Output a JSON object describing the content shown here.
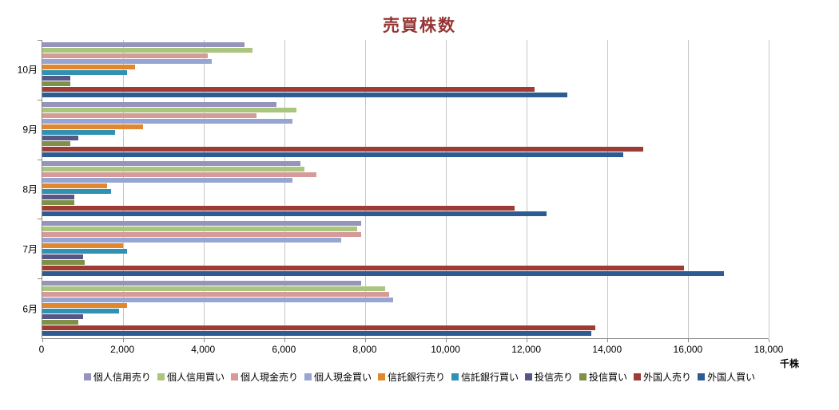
{
  "chart_data": {
    "type": "bar",
    "orientation": "horizontal",
    "title": "売買株数",
    "unit_label": "千株",
    "xlim": [
      0,
      18000
    ],
    "grid": true,
    "legend_position": "bottom",
    "xticks": [
      0,
      2000,
      4000,
      6000,
      8000,
      10000,
      12000,
      14000,
      16000,
      18000
    ],
    "x_tick_labels": [
      "0",
      "2,000",
      "4,000",
      "6,000",
      "8,000",
      "10,000",
      "12,000",
      "14,000",
      "16,000",
      "18,000"
    ],
    "categories": [
      "10月",
      "9月",
      "8月",
      "7月",
      "6月"
    ],
    "series": [
      {
        "name": "個人信用売り",
        "color": "#9595bc",
        "values": [
          5000,
          5800,
          6400,
          7900,
          7900
        ]
      },
      {
        "name": "個人信用買い",
        "color": "#aac57e",
        "values": [
          5200,
          6300,
          6500,
          7800,
          8500
        ]
      },
      {
        "name": "個人現金売り",
        "color": "#d69a98",
        "values": [
          4100,
          5300,
          6800,
          7900,
          8600
        ]
      },
      {
        "name": "個人現金買い",
        "color": "#97a5d2",
        "values": [
          4200,
          6200,
          6200,
          7400,
          8700
        ]
      },
      {
        "name": "信託銀行売り",
        "color": "#e1882e",
        "values": [
          2300,
          2500,
          1600,
          2000,
          2100
        ]
      },
      {
        "name": "信託銀行買い",
        "color": "#3191b2",
        "values": [
          2100,
          1800,
          1700,
          2100,
          1900
        ]
      },
      {
        "name": "投信売り",
        "color": "#565687",
        "values": [
          700,
          900,
          800,
          1000,
          1000
        ]
      },
      {
        "name": "投信買い",
        "color": "#7f9146",
        "values": [
          700,
          700,
          800,
          1050,
          900
        ]
      },
      {
        "name": "外国人売り",
        "color": "#9e3b34",
        "values": [
          12200,
          14900,
          11700,
          15900,
          13700
        ]
      },
      {
        "name": "外国人買い",
        "color": "#2d5b92",
        "values": [
          13000,
          14400,
          12500,
          16900,
          13600
        ]
      }
    ]
  }
}
